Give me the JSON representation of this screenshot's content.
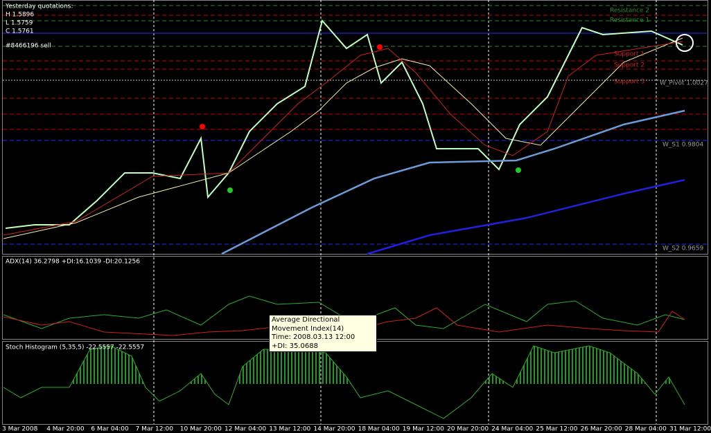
{
  "price_panel": {
    "quotes_title": "Yesterday quotations:",
    "high": "H 1.5896",
    "low": "L 1.5759",
    "close": "C 1.5761",
    "order": "#8466196 sell",
    "resistance_2": "Resistance 2",
    "resistance_1": "Resistance 1",
    "support_1": "Support 1",
    "support_2": "Support 2",
    "support_3": "Support 3",
    "pivot": "W_Pivot 1.0027",
    "s1": "W_S1 0.9804",
    "s2": "W_S2 0.9659"
  },
  "adx_panel": {
    "label": "ADX(14) 36.2798 +DI:16.1039 -DI:20.1256"
  },
  "tooltip": {
    "title": "Average Directional Movement Index(14)",
    "time": "Time: 2008.03.13 12:00",
    "value": "+DI: 35.0688"
  },
  "stoch_panel": {
    "label": "Stoch Histogram (5,35,5) -22.5557 -22.5557"
  },
  "time_axis": [
    "3 Mar 2008",
    "4 Mar 20:00",
    "6 Mar 04:00",
    "7 Mar 12:00",
    "10 Mar 20:00",
    "12 Mar 04:00",
    "13 Mar 12:00",
    "14 Mar 20:00",
    "18 Mar 04:00",
    "19 Mar 12:00",
    "20 Mar 20:00",
    "24 Mar 04:00",
    "25 Mar 12:00",
    "26 Mar 20:00",
    "28 Mar 04:00",
    "31 Mar 12:00"
  ]
}
